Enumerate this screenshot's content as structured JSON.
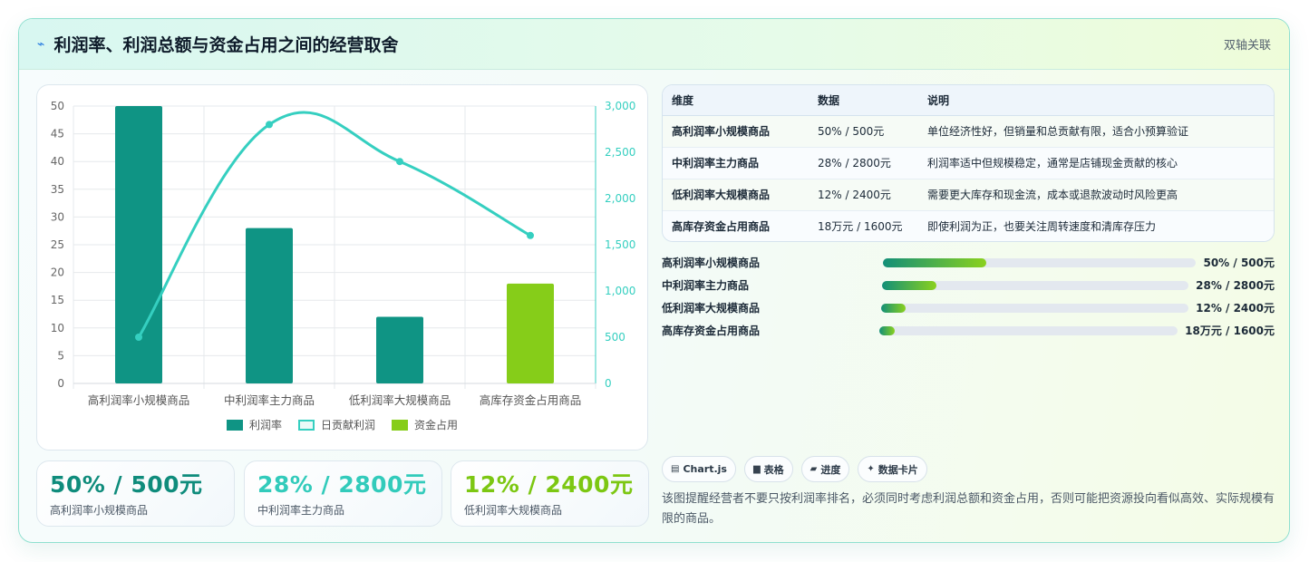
{
  "header": {
    "icon": "bolt-icon",
    "title": "利润率、利润总额与资金占用之间的经营取舍",
    "link": "双轴关联"
  },
  "chart_data": {
    "type": "bar",
    "categories": [
      "高利润率小规模商品",
      "中利润率主力商品",
      "低利润率大规模商品",
      "高库存资金占用商品"
    ],
    "series": [
      {
        "name": "利润率",
        "type": "bar",
        "axis": "left",
        "color": "#0f9484",
        "values": [
          50,
          28,
          12,
          null
        ]
      },
      {
        "name": "日贡献利润",
        "type": "line",
        "axis": "right",
        "color": "#35cfc0",
        "values": [
          500,
          2800,
          2400,
          1600
        ]
      },
      {
        "name": "资金占用",
        "type": "bar",
        "axis": "left",
        "color": "#86cd19",
        "values": [
          null,
          null,
          null,
          18
        ]
      }
    ],
    "ylim": [
      0,
      50
    ],
    "yticks": [
      "0",
      "5",
      "10",
      "15",
      "20",
      "25",
      "30",
      "35",
      "40",
      "45",
      "50"
    ],
    "y2lim": [
      0,
      3000
    ],
    "y2ticks": [
      "0",
      "500",
      "1,000",
      "1,500",
      "2,000",
      "2,500",
      "3,000"
    ],
    "grid": true,
    "legend_position": "bottom"
  },
  "stats": [
    {
      "value": "50% / 500元",
      "label": "高利润率小规模商品",
      "color": "#0f8c7c"
    },
    {
      "value": "28% / 2800元",
      "label": "中利润率主力商品",
      "color": "#32cbbb"
    },
    {
      "value": "12% / 2400元",
      "label": "低利润率大规模商品",
      "color": "#7cc712"
    }
  ],
  "table": {
    "headers": [
      "维度",
      "数据",
      "说明"
    ],
    "rows": [
      [
        "高利润率小规模商品",
        "50% / 500元",
        "单位经济性好，但销量和总贡献有限，适合小预算验证"
      ],
      [
        "中利润率主力商品",
        "28% / 2800元",
        "利润率适中但规模稳定，通常是店铺现金贡献的核心"
      ],
      [
        "低利润率大规模商品",
        "12% / 2400元",
        "需要更大库存和现金流，成本或退款波动时风险更高"
      ],
      [
        "高库存资金占用商品",
        "18万元 / 1600元",
        "即使利润为正，也要关注周转速度和清库存压力"
      ]
    ]
  },
  "progress": [
    {
      "label": "高利润率小规模商品",
      "value": "50% / 500元",
      "fraction": 0.33
    },
    {
      "label": "中利润率主力商品",
      "value": "28% / 2800元",
      "fraction": 0.18
    },
    {
      "label": "低利润率大规模商品",
      "value": "12% / 2400元",
      "fraction": 0.08
    },
    {
      "label": "高库存资金占用商品",
      "value": "18万元 / 1600元",
      "fraction": 0.05
    }
  ],
  "chips": [
    {
      "icon": "chart-icon",
      "glyph": "▤",
      "label": "Chart.js"
    },
    {
      "icon": "table-icon",
      "glyph": "▆",
      "label": "表格"
    },
    {
      "icon": "progress-icon",
      "glyph": "▰",
      "label": "进度"
    },
    {
      "icon": "sparkle-icon",
      "glyph": "✦",
      "label": "数据卡片"
    }
  ],
  "note": "该图提醒经营者不要只按利润率排名，必须同时考虑利润总额和资金占用，否则可能把资源投向看似高效、实际规模有限的商品。"
}
